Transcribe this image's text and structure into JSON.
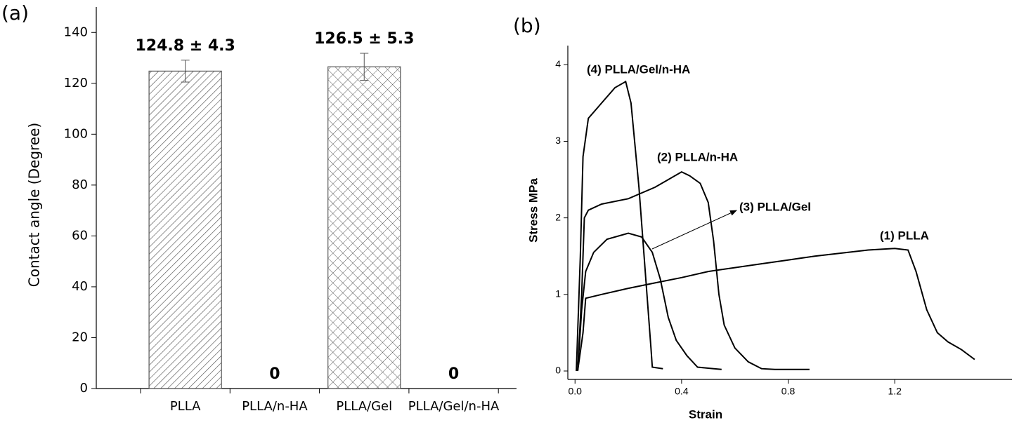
{
  "chart_data": [
    {
      "type": "bar",
      "panel_label": "(a)",
      "y_label": "Contact angle (Degree)",
      "categories": [
        "PLLA",
        "PLLA/n-HA",
        "PLLA/Gel",
        "PLLA/Gel/n-HA"
      ],
      "values": [
        124.8,
        0,
        126.5,
        0
      ],
      "errors": [
        4.3,
        null,
        5.3,
        null
      ],
      "value_labels": [
        "124.8 ± 4.3",
        "0",
        "126.5 ± 5.3",
        "0"
      ],
      "patterns": [
        "diagonal",
        "diagonal",
        "cross",
        "cross"
      ],
      "color": "#555555",
      "ylim": [
        0,
        150
      ],
      "yticks": [
        0,
        20,
        40,
        60,
        80,
        100,
        120,
        140
      ]
    },
    {
      "type": "line",
      "panel_label": "(b)",
      "x_label": "Strain",
      "y_label": "Stress MPa",
      "xlim": [
        -0.027,
        1.64
      ],
      "ylim": [
        -0.11,
        4.25
      ],
      "xticks": [
        {
          "value": 0,
          "label": "0.0"
        },
        0.4,
        0.8,
        1.2
      ],
      "yticks": [
        0,
        1,
        2,
        3,
        4
      ],
      "series": [
        {
          "name": "(1) PLLA",
          "color": "#000000",
          "x": [
            0.01,
            0.03,
            0.04,
            0.1,
            0.2,
            0.3,
            0.4,
            0.5,
            0.6,
            0.7,
            0.8,
            0.9,
            1.0,
            1.1,
            1.2,
            1.25,
            1.28,
            1.32,
            1.36,
            1.4,
            1.45,
            1.5
          ],
          "values": [
            0,
            0.5,
            0.95,
            1.0,
            1.08,
            1.15,
            1.22,
            1.3,
            1.35,
            1.4,
            1.45,
            1.5,
            1.54,
            1.58,
            1.6,
            1.58,
            1.3,
            0.8,
            0.5,
            0.38,
            0.28,
            0.15
          ]
        },
        {
          "name": "(2) PLLA/n-HA",
          "color": "#000000",
          "x": [
            0.01,
            0.025,
            0.035,
            0.05,
            0.1,
            0.2,
            0.3,
            0.35,
            0.4,
            0.43,
            0.47,
            0.5,
            0.52,
            0.54,
            0.56,
            0.6,
            0.65,
            0.7,
            0.75,
            0.88
          ],
          "values": [
            0,
            1.0,
            2.0,
            2.1,
            2.18,
            2.25,
            2.4,
            2.5,
            2.6,
            2.55,
            2.45,
            2.2,
            1.7,
            1.0,
            0.6,
            0.3,
            0.12,
            0.03,
            0.02,
            0.02
          ]
        },
        {
          "name": "(3) PLLA/Gel",
          "color": "#000000",
          "x": [
            0.01,
            0.025,
            0.04,
            0.07,
            0.12,
            0.2,
            0.25,
            0.29,
            0.32,
            0.35,
            0.38,
            0.42,
            0.46,
            0.55
          ],
          "values": [
            0,
            0.8,
            1.3,
            1.55,
            1.72,
            1.8,
            1.75,
            1.55,
            1.2,
            0.7,
            0.4,
            0.2,
            0.05,
            0.02
          ]
        },
        {
          "name": "(4) PLLA/Gel/n-HA",
          "color": "#000000",
          "x": [
            0.005,
            0.02,
            0.03,
            0.05,
            0.1,
            0.15,
            0.19,
            0.21,
            0.24,
            0.27,
            0.285,
            0.29,
            0.33
          ],
          "values": [
            0,
            1.5,
            2.8,
            3.3,
            3.5,
            3.7,
            3.78,
            3.5,
            2.4,
            1.0,
            0.3,
            0.05,
            0.03
          ]
        }
      ]
    }
  ]
}
